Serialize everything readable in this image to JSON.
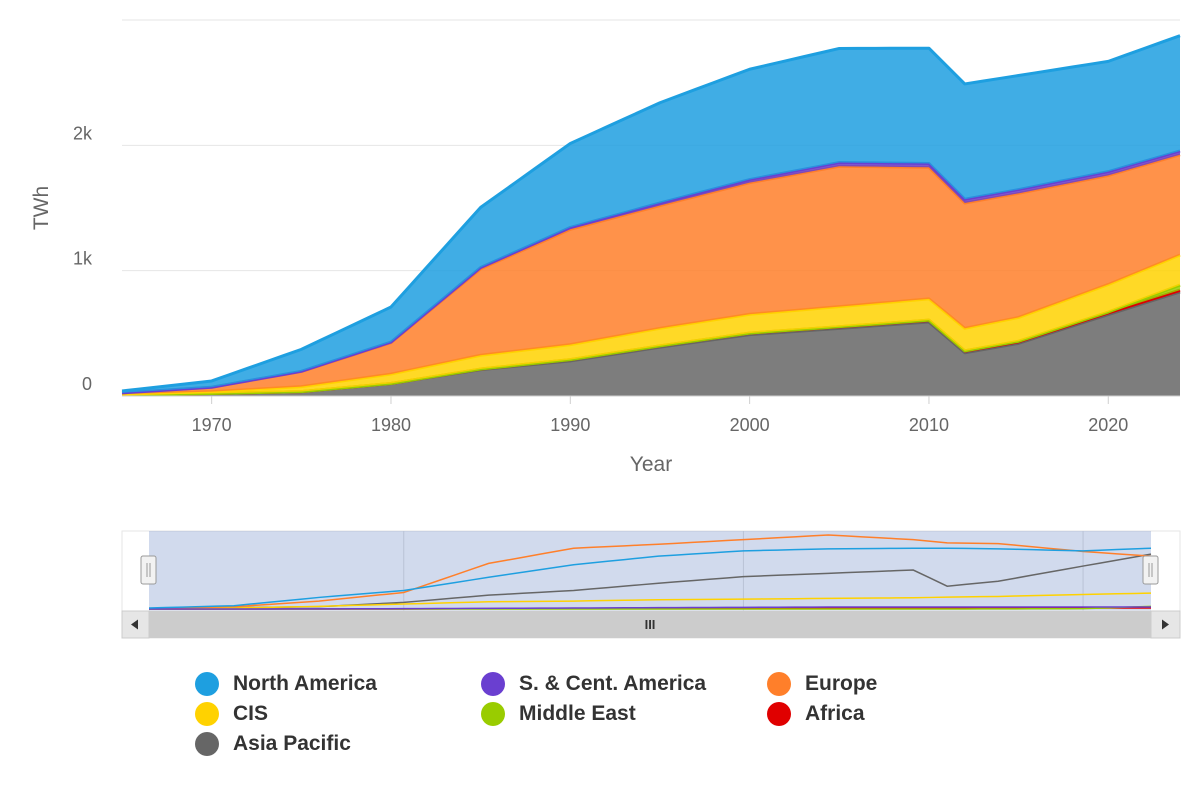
{
  "chart_data": {
    "type": "area",
    "stacked": true,
    "title": "",
    "xlabel": "Year",
    "ylabel": "TWh",
    "xlim": [
      1965,
      2024
    ],
    "ylim": [
      0,
      3000
    ],
    "x_ticks": [
      1970,
      1980,
      1990,
      2000,
      2010,
      2020
    ],
    "y_ticks": [
      {
        "value": 0,
        "label": "0"
      },
      {
        "value": 1000,
        "label": "1k"
      },
      {
        "value": 2000,
        "label": "2k"
      }
    ],
    "grid": true,
    "legend_position": "bottom",
    "navigator": {
      "visible": true
    },
    "anchors": [
      1965,
      1970,
      1975,
      1980,
      1985,
      1990,
      1995,
      2000,
      2005,
      2010,
      2012,
      2015,
      2020,
      2024
    ],
    "series": [
      {
        "name": "Asia Pacific",
        "color": "#666666",
        "values": [
          10,
          20,
          35,
          100,
          210,
          280,
          390,
          490,
          540,
          590,
          345,
          420,
          650,
          830
        ]
      },
      {
        "name": "Africa",
        "color": "#e00000",
        "values": [
          0,
          0,
          0,
          0,
          5,
          10,
          10,
          12,
          13,
          15,
          15,
          15,
          15,
          15
        ]
      },
      {
        "name": "Middle East",
        "color": "#99cc00",
        "values": [
          0,
          0,
          0,
          0,
          0,
          0,
          0,
          0,
          0,
          0,
          0,
          2,
          5,
          40
        ]
      },
      {
        "name": "CIS",
        "color": "#ffd200",
        "values": [
          5,
          15,
          40,
          75,
          110,
          120,
          140,
          150,
          160,
          170,
          180,
          190,
          220,
          240
        ]
      },
      {
        "name": "Europe",
        "color": "#ff7f2a",
        "values": [
          10,
          35,
          120,
          250,
          690,
          920,
          980,
          1050,
          1120,
          1050,
          1000,
          990,
          870,
          800
        ]
      },
      {
        "name": "S. & Cent. America",
        "color": "#6a3fd0",
        "values": [
          0,
          0,
          2,
          5,
          10,
          15,
          20,
          25,
          30,
          30,
          30,
          30,
          30,
          30
        ]
      },
      {
        "name": "North America",
        "color": "#1e9fe0",
        "values": [
          15,
          50,
          175,
          280,
          480,
          670,
          800,
          880,
          910,
          920,
          920,
          910,
          880,
          920
        ]
      }
    ]
  },
  "legend": {
    "items": [
      {
        "label": "North America",
        "color": "#1e9fe0"
      },
      {
        "label": "S. & Cent. America",
        "color": "#6a3fd0"
      },
      {
        "label": "Europe",
        "color": "#ff7f2a"
      },
      {
        "label": "CIS",
        "color": "#ffd200"
      },
      {
        "label": "Middle East",
        "color": "#99cc00"
      },
      {
        "label": "Africa",
        "color": "#e00000"
      },
      {
        "label": "Asia Pacific",
        "color": "#666666"
      }
    ]
  },
  "navigator": {
    "scroll_left_icon": "scroll-left-arrow-icon",
    "scroll_right_icon": "scroll-right-arrow-icon",
    "grip_icon": "grip-lines-icon",
    "grip_label": "III"
  }
}
